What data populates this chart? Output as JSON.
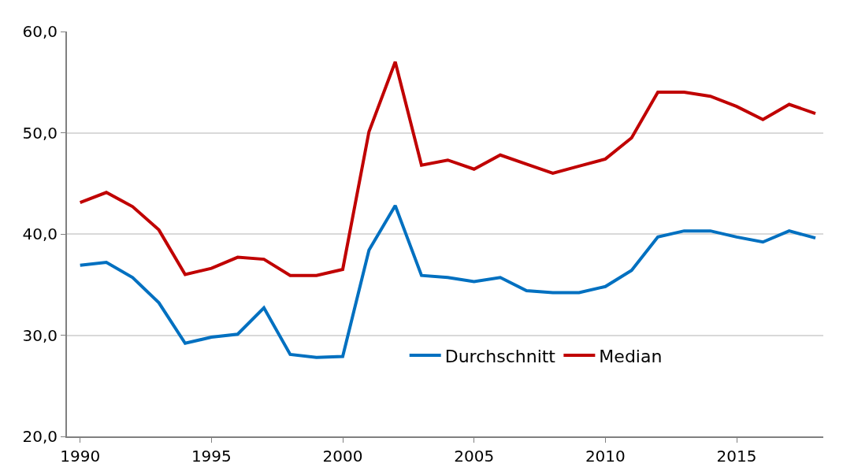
{
  "chart_data": {
    "type": "line",
    "x": [
      1990,
      1991,
      1992,
      1993,
      1994,
      1995,
      1996,
      1997,
      1998,
      1999,
      2000,
      2001,
      2002,
      2003,
      2004,
      2005,
      2006,
      2007,
      2008,
      2009,
      2010,
      2011,
      2012,
      2013,
      2014,
      2015,
      2016,
      2017,
      2018
    ],
    "series": [
      {
        "name": "Durchschnitt",
        "color": "#0070c0",
        "values": [
          36.9,
          37.2,
          35.7,
          33.2,
          29.2,
          29.8,
          30.1,
          32.7,
          28.1,
          27.8,
          27.9,
          38.4,
          42.8,
          35.9,
          35.7,
          35.3,
          35.7,
          34.4,
          34.2,
          34.2,
          34.8,
          36.4,
          39.7,
          40.3,
          40.3,
          39.7,
          39.2,
          40.3,
          39.6
        ]
      },
      {
        "name": "Median",
        "color": "#c00000",
        "values": [
          43.1,
          44.1,
          42.7,
          40.4,
          36.0,
          36.6,
          37.7,
          37.5,
          35.9,
          35.9,
          36.5,
          50.1,
          57.0,
          46.8,
          47.3,
          46.4,
          47.8,
          46.9,
          46.0,
          46.7,
          47.4,
          49.5,
          54.0,
          54.0,
          53.6,
          52.6,
          51.3,
          52.8,
          51.9
        ]
      }
    ],
    "xlim": [
      1989.5,
      2018.3
    ],
    "xticks": [
      1990,
      1995,
      2000,
      2005,
      2010,
      2015
    ],
    "ylim": [
      20,
      60
    ],
    "yticks": [
      {
        "value": 20,
        "label": "20,0"
      },
      {
        "value": 30,
        "label": "30,0"
      },
      {
        "value": 40,
        "label": "40,0"
      },
      {
        "value": 50,
        "label": "50,0"
      },
      {
        "value": 60,
        "label": "60,0"
      }
    ],
    "grid": "y",
    "legend": "bottom",
    "marker": "none",
    "line_style": "solid"
  }
}
